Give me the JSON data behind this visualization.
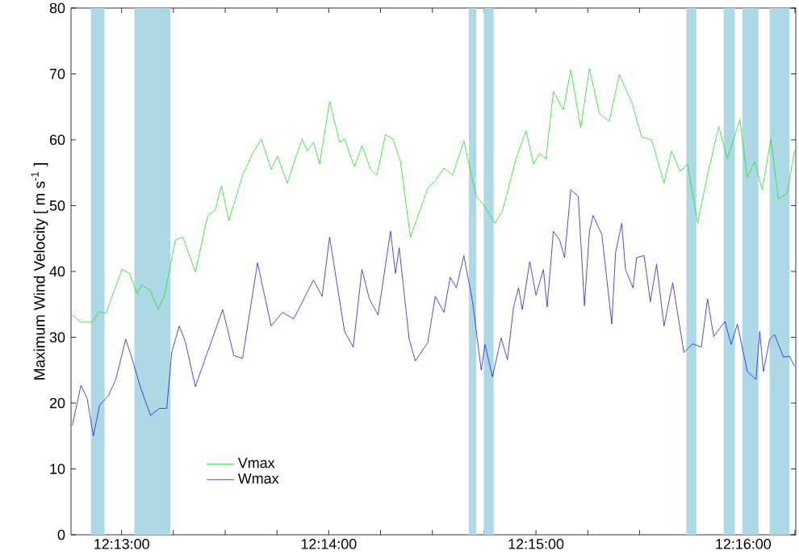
{
  "chart_data": {
    "type": "line",
    "ylabel": "Maximum Wind Velocity [ m s$^{-1}$ ]",
    "xlim": [
      12.2126,
      12.2709
    ],
    "ylim": [
      0,
      80
    ],
    "xticks": [
      {
        "value": 12.21667,
        "label": "12:13:00"
      },
      {
        "value": 12.22083,
        "label": null
      },
      {
        "value": 12.225,
        "label": null
      },
      {
        "value": 12.22917,
        "label": null
      },
      {
        "value": 12.23333,
        "label": "12:14:00"
      },
      {
        "value": 12.2375,
        "label": null
      },
      {
        "value": 12.24167,
        "label": null
      },
      {
        "value": 12.24583,
        "label": null
      },
      {
        "value": 12.25,
        "label": "12:15:00"
      },
      {
        "value": 12.25417,
        "label": null
      },
      {
        "value": 12.25833,
        "label": null
      },
      {
        "value": 12.2625,
        "label": null
      },
      {
        "value": 12.26667,
        "label": "12:16:00"
      },
      {
        "value": 12.27083,
        "label": null
      }
    ],
    "yticks": [
      0,
      10,
      20,
      30,
      40,
      50,
      60,
      70,
      80
    ],
    "legend": "bottom left",
    "marker": "none",
    "line_style": "solid",
    "grid": false,
    "bands": [
      {
        "axis": "x",
        "from": 12.2142,
        "to": 12.2153,
        "color": "#add8e6"
      },
      {
        "axis": "x",
        "from": 12.2177,
        "to": 12.2206,
        "color": "#add8e6"
      },
      {
        "axis": "x",
        "from": 12.2446,
        "to": 12.2452,
        "color": "#add8e6"
      },
      {
        "axis": "x",
        "from": 12.2458,
        "to": 12.2466,
        "color": "#add8e6"
      },
      {
        "axis": "x",
        "from": 12.2621,
        "to": 12.2629,
        "color": "#add8e6"
      },
      {
        "axis": "x",
        "from": 12.2651,
        "to": 12.266,
        "color": "#add8e6"
      },
      {
        "axis": "x",
        "from": 12.2666,
        "to": 12.2679,
        "color": "#add8e6"
      },
      {
        "axis": "x",
        "from": 12.2688,
        "to": 12.2704,
        "color": "#add8e6"
      }
    ],
    "series": [
      {
        "name": "Vmax",
        "color": "#22e022",
        "x": [
          12.2127,
          12.2134,
          12.2143,
          12.2149,
          12.2154,
          12.2167,
          12.2173,
          12.2179,
          12.2183,
          12.219,
          12.2196,
          12.2201,
          12.221,
          12.2216,
          12.2226,
          12.2236,
          12.2242,
          12.2247,
          12.2253,
          12.2264,
          12.2272,
          12.2279,
          12.2287,
          12.2292,
          12.23,
          12.2307,
          12.2312,
          12.2316,
          12.2321,
          12.2326,
          12.2334,
          12.2342,
          12.2346,
          12.2354,
          12.236,
          12.2367,
          12.2372,
          12.2379,
          12.2385,
          12.2391,
          12.2399,
          12.2406,
          12.2413,
          12.2419,
          12.2426,
          12.2433,
          12.2442,
          12.2452,
          12.2458,
          12.2467,
          12.2473,
          12.2484,
          12.2492,
          12.2498,
          12.2503,
          12.2508,
          12.2514,
          12.2522,
          12.2528,
          12.2536,
          12.2543,
          12.2551,
          12.2559,
          12.2567,
          12.2577,
          12.2585,
          12.2593,
          12.2603,
          12.2609,
          12.2616,
          12.2622,
          12.263,
          12.2639,
          12.2647,
          12.2654,
          12.2664,
          12.267,
          12.2676,
          12.2682,
          12.2689,
          12.2695,
          12.2702,
          12.2708
        ],
        "values": [
          33.4,
          32.3,
          32.3,
          33.9,
          33.6,
          40.3,
          39.7,
          36.6,
          38,
          37,
          34.2,
          36.2,
          44.8,
          45.2,
          39.9,
          48.5,
          49.3,
          53,
          47.7,
          54.6,
          57.9,
          60.1,
          55.5,
          57.5,
          53.4,
          57.5,
          60.1,
          58.3,
          59.6,
          56.3,
          65.8,
          59.6,
          60.1,
          55.9,
          59.1,
          55.5,
          54.6,
          60.8,
          60.1,
          56.7,
          45.2,
          48.9,
          52.6,
          53.8,
          55.7,
          54.6,
          59.8,
          51.4,
          50.1,
          47.3,
          49.2,
          57.1,
          61.4,
          56.3,
          57.9,
          57.1,
          67.3,
          64.5,
          70.6,
          61.8,
          70.8,
          64,
          62.8,
          69.9,
          65.7,
          60.4,
          60,
          53.4,
          58.3,
          55.2,
          56.3,
          47.4,
          55.5,
          62,
          57.1,
          63.1,
          54.2,
          56.7,
          52.4,
          60.1,
          51,
          51.8,
          58.3
        ]
      },
      {
        "name": "Wmax",
        "color": "#2020e0",
        "x": [
          12.2127,
          12.2134,
          12.2139,
          12.2144,
          12.2149,
          12.2156,
          12.2162,
          12.217,
          12.2175,
          12.2182,
          12.219,
          12.2197,
          12.2203,
          12.2207,
          12.2213,
          12.2218,
          12.2226,
          12.2238,
          12.2248,
          12.2257,
          12.2264,
          12.2276,
          12.2287,
          12.2296,
          12.2305,
          12.231,
          12.2321,
          12.2328,
          12.2334,
          12.2346,
          12.2353,
          12.236,
          12.2366,
          12.2373,
          12.2383,
          12.2387,
          12.239,
          12.2398,
          12.2403,
          12.2413,
          12.2419,
          12.2426,
          12.2431,
          12.2436,
          12.2442,
          12.2449,
          12.2456,
          12.2459,
          12.2465,
          12.2472,
          12.2477,
          12.2482,
          12.2486,
          12.2489,
          12.2495,
          12.25,
          12.2506,
          12.2509,
          12.2514,
          12.2519,
          12.2523,
          12.2528,
          12.2534,
          12.2539,
          12.2543,
          12.2546,
          12.2553,
          12.2561,
          12.2564,
          12.2569,
          12.2572,
          12.2578,
          12.2581,
          12.2587,
          12.2592,
          12.2597,
          12.2603,
          12.261,
          12.2619,
          12.2626,
          12.2633,
          12.2638,
          12.2643,
          12.2652,
          12.2657,
          12.2662,
          12.267,
          12.2677,
          12.268,
          12.2683,
          12.2688,
          12.2692,
          12.2699,
          12.2704,
          12.2708
        ],
        "values": [
          16.6,
          22.7,
          20.7,
          15,
          19.7,
          21.1,
          23.6,
          29.7,
          26.8,
          22.3,
          18.1,
          19.2,
          19.2,
          27.7,
          31.7,
          29.3,
          22.5,
          28.9,
          34.2,
          27.2,
          26.8,
          41.3,
          31.7,
          33.8,
          32.8,
          34.6,
          38.7,
          36.2,
          45.2,
          30.9,
          28.5,
          40.3,
          35.8,
          33.4,
          46.1,
          39.7,
          43.6,
          29.7,
          26.4,
          29.2,
          36.2,
          33.8,
          39.1,
          37.5,
          42.4,
          35.4,
          25,
          28.9,
          24,
          29.9,
          26.6,
          34.6,
          37.5,
          34.2,
          41.5,
          36.4,
          40.3,
          34.6,
          46.1,
          44.8,
          42.1,
          52.4,
          51.4,
          34.8,
          46.1,
          48.5,
          45.6,
          32,
          42.8,
          47.3,
          40.3,
          37.5,
          42.1,
          42.4,
          35.4,
          41.1,
          31.7,
          38.3,
          27.7,
          29,
          28.5,
          35.8,
          30.1,
          32.4,
          28.9,
          32,
          24.8,
          23.6,
          30.9,
          24.8,
          29.7,
          30.4,
          27,
          27.1,
          25.6
        ]
      }
    ]
  }
}
